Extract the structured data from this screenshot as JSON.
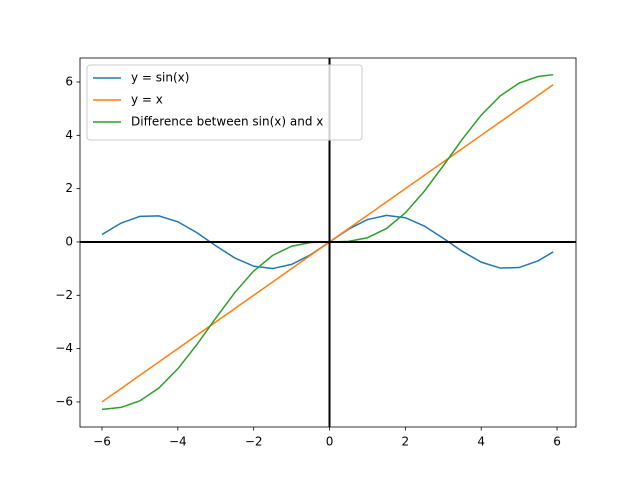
{
  "chart_data": {
    "type": "line",
    "x": [
      -6,
      -5.5,
      -5,
      -4.5,
      -4,
      -3.5,
      -3,
      -2.5,
      -2,
      -1.5,
      -1,
      -0.5,
      0,
      0.5,
      1,
      1.5,
      2,
      2.5,
      3,
      3.5,
      4,
      4.5,
      5,
      5.5,
      5.9
    ],
    "series": [
      {
        "name": "y = sin(x)",
        "color": "#1f77b4",
        "values": [
          0.279,
          0.706,
          0.959,
          0.978,
          0.757,
          0.351,
          -0.141,
          -0.598,
          -0.909,
          -0.997,
          -0.841,
          -0.479,
          0,
          0.479,
          0.841,
          0.997,
          0.909,
          0.598,
          0.141,
          -0.351,
          -0.757,
          -0.978,
          -0.959,
          -0.706,
          -0.374
        ]
      },
      {
        "name": "y = x",
        "color": "#ff7f0e",
        "values": [
          -6,
          -5.5,
          -5,
          -4.5,
          -4,
          -3.5,
          -3,
          -2.5,
          -2,
          -1.5,
          -1,
          -0.5,
          0,
          0.5,
          1,
          1.5,
          2,
          2.5,
          3,
          3.5,
          4,
          4.5,
          5,
          5.5,
          5.9
        ]
      },
      {
        "name": "Difference between sin(x) and x",
        "color": "#2ca02c",
        "values": [
          -6.279,
          -6.206,
          -5.959,
          -5.478,
          -4.757,
          -3.851,
          -2.859,
          -1.902,
          -1.091,
          -0.503,
          -0.159,
          -0.021,
          0,
          0.021,
          0.159,
          0.503,
          1.091,
          1.902,
          2.859,
          3.851,
          4.757,
          5.478,
          5.959,
          6.206,
          6.274
        ]
      }
    ],
    "xlim": [
      -6.58,
      6.5
    ],
    "ylim": [
      -6.94,
      6.9
    ],
    "xticks": [
      {
        "value": -6,
        "label": "−6"
      },
      {
        "value": -4,
        "label": "−4"
      },
      {
        "value": -2,
        "label": "−2"
      },
      0,
      2,
      4,
      6
    ],
    "yticks": [
      {
        "value": -6,
        "label": "−6"
      },
      {
        "value": -4,
        "label": "−4"
      },
      {
        "value": -2,
        "label": "−2"
      },
      0,
      2,
      4,
      6
    ],
    "axhline": 0,
    "axvline": 0,
    "legend": "upper left"
  }
}
